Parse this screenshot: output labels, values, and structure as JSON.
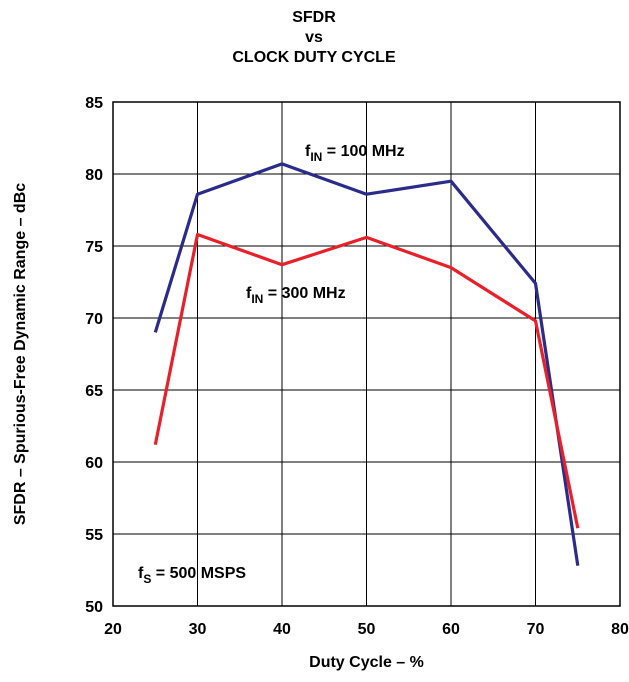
{
  "chart_data": {
    "type": "line",
    "title_lines": [
      "SFDR",
      "vs",
      "CLOCK DUTY CYCLE"
    ],
    "xlabel": "Duty Cycle – %",
    "ylabel": "SFDR – Spurious-Free Dynamic Range – dBc",
    "xlim": [
      20,
      80
    ],
    "ylim": [
      50,
      85
    ],
    "xticks": [
      20,
      30,
      40,
      50,
      60,
      70,
      80
    ],
    "yticks": [
      50,
      55,
      60,
      65,
      70,
      75,
      80,
      85
    ],
    "grid": true,
    "series": [
      {
        "label_main": "f",
        "label_sub": "IN",
        "label_rest": " = 100 MHz",
        "color": "#2b2b8c",
        "x": [
          25,
          30,
          40,
          50,
          60,
          70,
          75
        ],
        "y": [
          69.0,
          78.6,
          80.7,
          78.6,
          79.5,
          72.4,
          52.8
        ]
      },
      {
        "label_main": "f",
        "label_sub": "IN",
        "label_rest": " = 300 MHz",
        "color": "#e8202a",
        "x": [
          25,
          30,
          40,
          50,
          60,
          70,
          75
        ],
        "y": [
          61.2,
          75.8,
          73.7,
          75.6,
          73.5,
          69.8,
          55.4
        ]
      }
    ],
    "annotation": {
      "main": "f",
      "sub": "S",
      "rest": " = 500 MSPS"
    }
  }
}
